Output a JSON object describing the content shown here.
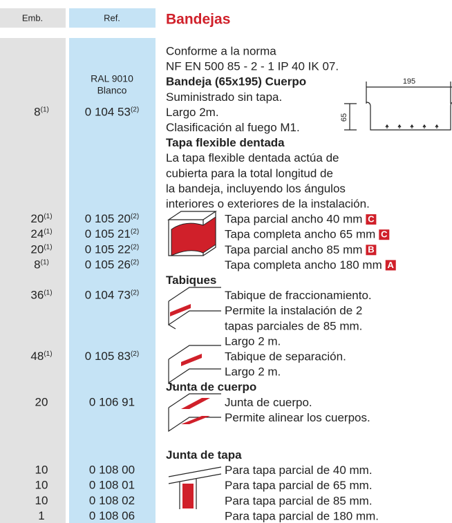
{
  "header": {
    "emb": "Emb.",
    "ref": "Ref.",
    "title": "Bandejas"
  },
  "intro": [
    "Conforme a la norma",
    "NF EN 500 85 - 2 - 1 IP 40 IK 07."
  ],
  "color": {
    "code": "RAL 9010",
    "name": "Blanco"
  },
  "sections": [
    {
      "title": "Bandeja  (65x195) Cuerpo",
      "lines": [
        "Suministrado sin tapa.",
        "Largo 2m.",
        "Clasificación al fuego M1."
      ],
      "rows": [
        {
          "emb": "8",
          "emb_note": "(1)",
          "ref": "0 104 53",
          "ref_note": "(2)"
        }
      ],
      "diagram": {
        "width": "195",
        "height": "65"
      }
    },
    {
      "title": "Tapa flexible dentada",
      "lines": [
        "La tapa flexible dentada actúa de",
        "cubierta para la total longitud de",
        "la bandeja, incluyendo los ángulos",
        "interiores o exteriores de la instalación."
      ],
      "rows": [
        {
          "emb": "20",
          "emb_note": "(1)",
          "ref": "0 105 20",
          "ref_note": "(2)",
          "text": "Tapa parcial ancho 40 mm",
          "badge": "C"
        },
        {
          "emb": "24",
          "emb_note": "(1)",
          "ref": "0 105 21",
          "ref_note": "(2)",
          "text": "Tapa completa ancho 65 mm",
          "badge": "C"
        },
        {
          "emb": "20",
          "emb_note": "(1)",
          "ref": "0 105 22",
          "ref_note": "(2)",
          "text": "Tapa parcial ancho 85 mm",
          "badge": "B"
        },
        {
          "emb": "8",
          "emb_note": "(1)",
          "ref": "0 105 26",
          "ref_note": "(2)",
          "text": "Tapa completa ancho 180 mm",
          "badge": "A"
        }
      ]
    },
    {
      "title": "Tabiques",
      "lines": [
        "Tabique de fraccionamiento.",
        "Permite la instalación de 2",
        "tapas parciales de 85 mm.",
        "Largo 2 m.",
        "Tabique de separación.",
        "Largo 2 m."
      ],
      "rows": [
        {
          "emb": "36",
          "emb_note": "(1)",
          "ref": "0 104 73",
          "ref_note": "(2)"
        },
        {
          "emb": "48",
          "emb_note": "(1)",
          "ref": "0 105 83",
          "ref_note": "(2)"
        }
      ]
    },
    {
      "title": "Junta de cuerpo",
      "lines": [
        "Junta de cuerpo.",
        "Permite alinear los cuerpos."
      ],
      "rows": [
        {
          "emb": "20",
          "ref": "0 106 91"
        }
      ]
    },
    {
      "title": "Junta de tapa",
      "rows": [
        {
          "emb": "10",
          "ref": "0 108 00",
          "text": "Para tapa parcial de 40 mm."
        },
        {
          "emb": "10",
          "ref": "0 108 01",
          "text": "Para tapa parcial de 65 mm."
        },
        {
          "emb": "10",
          "ref": "0 108 02",
          "text": "Para tapa parcial de 85 mm."
        },
        {
          "emb": "1",
          "ref": "0 108 06",
          "text": "Para tapa parcial de 180 mm."
        }
      ]
    }
  ]
}
